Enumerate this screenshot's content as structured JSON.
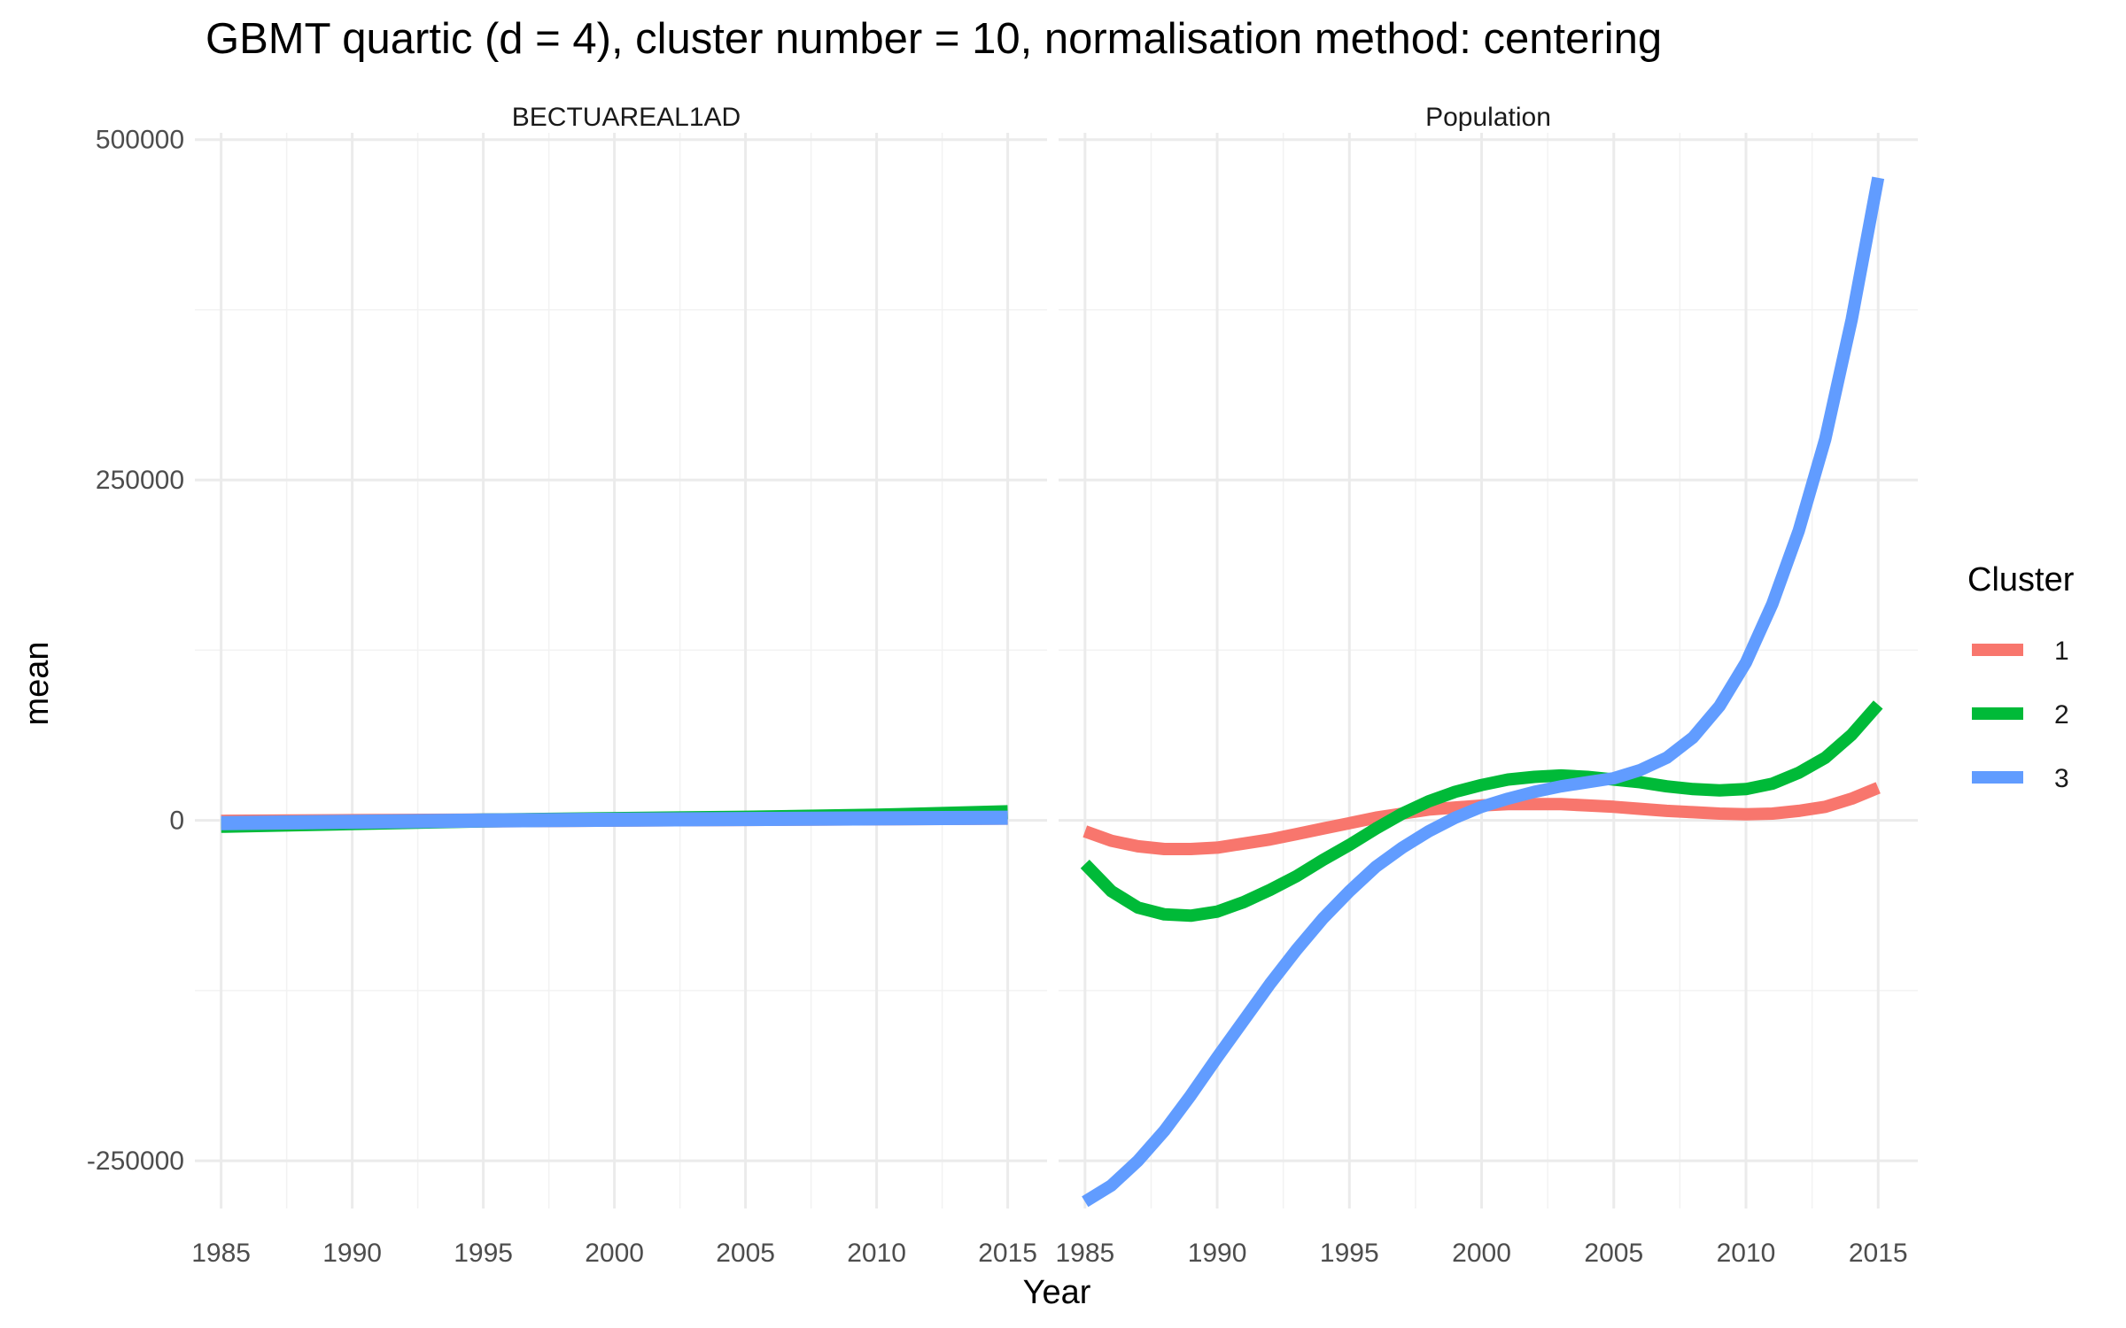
{
  "chart_data": {
    "type": "line",
    "title": "GBMT quartic (d = 4), cluster number = 10, normalisation method: centering",
    "xlabel": "Year",
    "ylabel": "mean",
    "xlim": [
      1984,
      2016.5
    ],
    "ylim": [
      -285000,
      505000
    ],
    "x_ticks": [
      1985,
      1990,
      1995,
      2000,
      2005,
      2010,
      2015
    ],
    "x_tick_labels": [
      "1985",
      "1990",
      "1995",
      "2000",
      "2005",
      "2010",
      "2015"
    ],
    "y_ticks": [
      -250000,
      0,
      250000,
      500000
    ],
    "y_tick_labels": [
      "-250000",
      "0",
      "250000",
      "500000"
    ],
    "grid": true,
    "legend": {
      "title": "Cluster",
      "position": "right",
      "entries": [
        {
          "label": "1",
          "color": "#F8766D"
        },
        {
          "label": "2",
          "color": "#00BA38"
        },
        {
          "label": "3",
          "color": "#619CFF"
        }
      ]
    },
    "panels": [
      {
        "strip_label": "BECTUAREAL1AD",
        "x": [
          1985,
          1990,
          1995,
          2000,
          2005,
          2010,
          2015
        ],
        "series": [
          {
            "name": "1",
            "color": "#F8766D",
            "values": [
              -1000,
              -500,
              0,
              500,
              1000,
              1500,
              2000
            ]
          },
          {
            "name": "2",
            "color": "#00BA38",
            "values": [
              -4000,
              -2000,
              0,
              1000,
              2000,
              3500,
              6000
            ]
          },
          {
            "name": "3",
            "color": "#619CFF",
            "values": [
              -2000,
              -1000,
              0,
              500,
              1000,
              1500,
              2000
            ]
          }
        ]
      },
      {
        "strip_label": "Population",
        "x": [
          1985,
          1986,
          1987,
          1988,
          1989,
          1990,
          1991,
          1992,
          1993,
          1994,
          1995,
          1996,
          1997,
          1998,
          1999,
          2000,
          2001,
          2002,
          2003,
          2004,
          2005,
          2006,
          2007,
          2008,
          2009,
          2010,
          2011,
          2012,
          2013,
          2014,
          2015
        ],
        "series": [
          {
            "name": "1",
            "color": "#F8766D",
            "values": [
              -8000,
              -15000,
              -19000,
              -21000,
              -21000,
              -20000,
              -17000,
              -14000,
              -10000,
              -6000,
              -2000,
              2000,
              5000,
              8000,
              9500,
              11000,
              12000,
              12000,
              12000,
              11000,
              10000,
              8500,
              7000,
              6000,
              5000,
              4500,
              5000,
              7000,
              10000,
              16000,
              24000
            ]
          },
          {
            "name": "2",
            "color": "#00BA38",
            "values": [
              -32000,
              -52000,
              -64000,
              -69000,
              -70000,
              -67000,
              -60000,
              -51000,
              -41000,
              -29000,
              -18000,
              -6000,
              5000,
              14000,
              21000,
              26000,
              30000,
              32000,
              33000,
              32000,
              30000,
              28000,
              25000,
              23000,
              22000,
              23000,
              27000,
              35000,
              46000,
              63000,
              85000
            ]
          },
          {
            "name": "3",
            "color": "#619CFF",
            "values": [
              -280000,
              -268000,
              -250000,
              -228000,
              -202000,
              -174000,
              -147000,
              -120000,
              -95000,
              -72000,
              -52000,
              -34000,
              -20000,
              -8000,
              2000,
              10000,
              16000,
              21000,
              25000,
              28000,
              31000,
              37000,
              46000,
              61000,
              84000,
              116000,
              159000,
              213000,
              280000,
              368000,
              472000
            ]
          }
        ]
      }
    ]
  }
}
